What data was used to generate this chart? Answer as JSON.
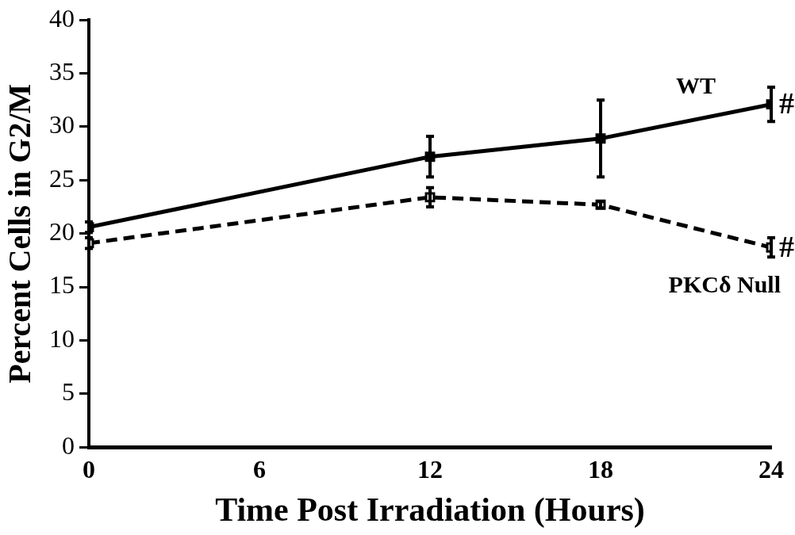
{
  "chart_data": {
    "type": "line",
    "xlabel": "Time Post Irradiation (Hours)",
    "ylabel": "Percent Cells in G2/M",
    "x": [
      0,
      12,
      18,
      24
    ],
    "series": [
      {
        "name": "WT",
        "color": "#000000",
        "line_style": "solid",
        "values": [
          20.6,
          27.2,
          28.9,
          32.1
        ],
        "errors": [
          0.5,
          1.9,
          3.6,
          1.6
        ]
      },
      {
        "name": "PKCδ Null",
        "color": "#000000",
        "line_style": "dashed",
        "values": [
          19.1,
          23.4,
          22.7,
          18.7
        ],
        "errors": [
          0.5,
          0.9,
          0.3,
          0.9
        ]
      }
    ],
    "annotations": [
      {
        "text": "#",
        "x": 24,
        "y": 32.1
      },
      {
        "text": "#",
        "x": 24,
        "y": 18.7
      }
    ],
    "xlim": [
      0,
      24
    ],
    "xticks": [
      0,
      6,
      12,
      18,
      24
    ],
    "ylim": [
      0,
      40
    ],
    "yticks": [
      0,
      5,
      10,
      15,
      20,
      25,
      30,
      35,
      40
    ],
    "marker": "square",
    "grid": false,
    "legend": false
  }
}
